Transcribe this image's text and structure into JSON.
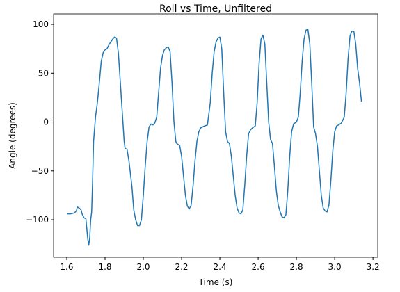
{
  "chart_data": {
    "type": "line",
    "title": "Roll vs Time, Unfiltered",
    "xlabel": "Time (s)",
    "ylabel": "Angle (degrees)",
    "x": [
      1.6,
      1.62,
      1.64,
      1.65,
      1.655,
      1.665,
      1.675,
      1.68,
      1.69,
      1.7,
      1.705,
      1.71,
      1.715,
      1.72,
      1.725,
      1.73,
      1.735,
      1.74,
      1.75,
      1.76,
      1.77,
      1.78,
      1.79,
      1.8,
      1.81,
      1.82,
      1.83,
      1.84,
      1.85,
      1.86,
      1.87,
      1.88,
      1.89,
      1.9,
      1.905,
      1.915,
      1.925,
      1.94,
      1.95,
      1.96,
      1.97,
      1.98,
      1.99,
      2.0,
      2.01,
      2.02,
      2.03,
      2.04,
      2.05,
      2.06,
      2.07,
      2.08,
      2.09,
      2.1,
      2.11,
      2.12,
      2.13,
      2.14,
      2.15,
      2.16,
      2.17,
      2.175,
      2.19,
      2.2,
      2.21,
      2.22,
      2.23,
      2.24,
      2.25,
      2.26,
      2.27,
      2.28,
      2.29,
      2.3,
      2.31,
      2.32,
      2.335,
      2.35,
      2.36,
      2.37,
      2.38,
      2.39,
      2.4,
      2.41,
      2.42,
      2.43,
      2.44,
      2.45,
      2.46,
      2.47,
      2.48,
      2.49,
      2.5,
      2.51,
      2.52,
      2.53,
      2.54,
      2.55,
      2.56,
      2.57,
      2.585,
      2.595,
      2.605,
      2.615,
      2.625,
      2.635,
      2.645,
      2.655,
      2.665,
      2.675,
      2.685,
      2.695,
      2.705,
      2.715,
      2.725,
      2.735,
      2.745,
      2.755,
      2.765,
      2.775,
      2.785,
      2.8,
      2.81,
      2.82,
      2.83,
      2.84,
      2.85,
      2.86,
      2.87,
      2.88,
      2.89,
      2.9,
      2.91,
      2.92,
      2.93,
      2.94,
      2.95,
      2.96,
      2.97,
      2.98,
      2.99,
      3.0,
      3.01,
      3.02,
      3.035,
      3.05,
      3.06,
      3.07,
      3.08,
      3.09,
      3.1,
      3.11,
      3.12,
      3.13,
      3.14
    ],
    "series": [
      {
        "name": "Roll",
        "color": "#1f77b4",
        "values": [
          -94,
          -94,
          -93,
          -91,
          -87,
          -88,
          -90,
          -94,
          -98,
          -99,
          -110,
          -120,
          -126,
          -118,
          -100,
          -92,
          -60,
          -20,
          5,
          20,
          40,
          62,
          71,
          74,
          75,
          79,
          82,
          85,
          87,
          86,
          70,
          40,
          10,
          -20,
          -27,
          -28,
          -40,
          -65,
          -90,
          -100,
          -106,
          -106,
          -100,
          -75,
          -45,
          -20,
          -5,
          -2,
          -3,
          -1,
          5,
          30,
          55,
          68,
          74,
          76,
          77,
          72,
          40,
          0,
          -20,
          -22,
          -24,
          -35,
          -55,
          -75,
          -86,
          -89,
          -85,
          -65,
          -40,
          -20,
          -10,
          -6,
          -5,
          -4,
          -3,
          20,
          50,
          72,
          82,
          86,
          87,
          75,
          30,
          -10,
          -20,
          -22,
          -35,
          -55,
          -75,
          -88,
          -93,
          -94,
          -90,
          -65,
          -35,
          -12,
          -8,
          -6,
          -4,
          20,
          60,
          85,
          89,
          80,
          40,
          0,
          -18,
          -22,
          -45,
          -70,
          -85,
          -92,
          -97,
          -98,
          -95,
          -70,
          -35,
          -10,
          -2,
          0,
          5,
          30,
          62,
          85,
          94,
          95,
          80,
          40,
          -5,
          -12,
          -25,
          -50,
          -75,
          -88,
          -91,
          -92,
          -85,
          -60,
          -30,
          -10,
          -4,
          -3,
          -1,
          5,
          30,
          65,
          88,
          93,
          93,
          80,
          55,
          40,
          21
        ]
      }
    ],
    "xlim": [
      1.531,
      3.225
    ],
    "ylim": [
      -138.4,
      110.7
    ],
    "xticks": [
      1.6,
      1.8,
      {
        "value": 2,
        "label": "2.0"
      },
      2.2,
      2.4,
      2.6,
      2.8,
      {
        "value": 3,
        "label": "3.0"
      },
      3.2
    ],
    "yticks": [
      {
        "value": -100,
        "label": "−100"
      },
      {
        "value": -50,
        "label": "−50"
      },
      0,
      50,
      100
    ]
  }
}
